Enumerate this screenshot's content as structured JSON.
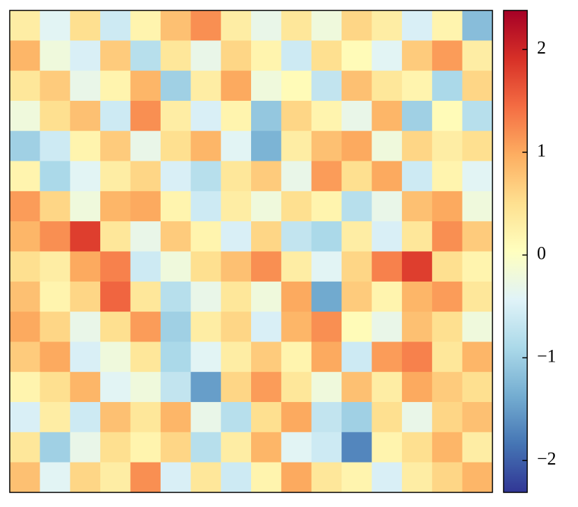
{
  "chart_data": {
    "type": "heatmap",
    "colormap": "RdYlBu_r",
    "zlim": [
      -2.31,
      2.38
    ],
    "zticks": [
      {
        "value": -2,
        "label": "−2"
      },
      {
        "value": -1,
        "label": "−1"
      },
      0,
      1,
      2
    ],
    "values": [
      [
        0.3,
        -0.4,
        0.5,
        -0.6,
        0.2,
        0.8,
        1.2,
        0.3,
        -0.3,
        0.4,
        -0.2,
        0.6,
        0.3,
        -0.5,
        0.2,
        -1.2
      ],
      [
        0.9,
        -0.2,
        -0.5,
        0.7,
        -0.8,
        0.4,
        -0.3,
        0.6,
        0.2,
        -0.6,
        0.5,
        0.1,
        -0.4,
        0.7,
        1.1,
        0.3
      ],
      [
        0.4,
        0.7,
        -0.3,
        0.2,
        0.9,
        -1.0,
        0.3,
        1.0,
        -0.2,
        0.1,
        -0.7,
        0.8,
        0.4,
        0.2,
        -0.9,
        0.6
      ],
      [
        -0.2,
        0.5,
        0.8,
        -0.6,
        1.2,
        0.3,
        -0.5,
        0.2,
        -1.1,
        0.6,
        0.2,
        -0.3,
        0.9,
        -1.0,
        0.1,
        -0.8
      ],
      [
        -1.0,
        -0.6,
        0.2,
        0.7,
        -0.3,
        0.5,
        0.9,
        -0.4,
        -1.3,
        0.3,
        0.8,
        1.0,
        -0.2,
        0.6,
        0.3,
        0.5
      ],
      [
        0.2,
        -0.9,
        -0.4,
        0.3,
        0.6,
        -0.5,
        -0.8,
        0.4,
        0.7,
        -0.3,
        1.1,
        0.5,
        1.0,
        -0.6,
        0.2,
        -0.4
      ],
      [
        1.1,
        0.6,
        -0.2,
        0.9,
        1.0,
        0.2,
        -0.6,
        0.3,
        -0.2,
        0.5,
        0.2,
        -0.8,
        -0.3,
        0.8,
        1.0,
        -0.2
      ],
      [
        0.9,
        1.2,
        1.8,
        0.4,
        -0.3,
        0.7,
        0.2,
        -0.5,
        0.6,
        -0.7,
        -0.9,
        0.3,
        -0.5,
        0.4,
        1.2,
        0.7
      ],
      [
        0.5,
        0.3,
        1.0,
        1.3,
        -0.6,
        -0.2,
        0.5,
        0.8,
        1.2,
        0.3,
        -0.4,
        0.6,
        1.3,
        1.8,
        0.5,
        0.2
      ],
      [
        0.8,
        0.2,
        0.6,
        1.5,
        0.4,
        -0.8,
        -0.3,
        0.4,
        -0.2,
        1.0,
        -1.4,
        0.7,
        0.2,
        0.9,
        1.1,
        0.4
      ],
      [
        1.0,
        0.6,
        -0.3,
        0.5,
        1.1,
        -1.0,
        0.3,
        0.6,
        -0.5,
        0.9,
        1.2,
        0.1,
        -0.3,
        0.8,
        0.5,
        -0.2
      ],
      [
        0.7,
        1.0,
        -0.5,
        -0.2,
        0.4,
        -0.9,
        -0.4,
        0.3,
        0.7,
        0.2,
        1.0,
        -0.6,
        1.1,
        1.3,
        0.4,
        0.9
      ],
      [
        0.2,
        0.5,
        0.9,
        -0.4,
        -0.2,
        -0.7,
        -1.5,
        0.6,
        1.1,
        0.4,
        -0.2,
        0.8,
        0.3,
        1.0,
        0.7,
        0.5
      ],
      [
        -0.5,
        0.3,
        -0.6,
        0.8,
        0.4,
        0.9,
        -0.3,
        -0.8,
        0.5,
        1.0,
        -0.7,
        -1.0,
        0.5,
        -0.3,
        0.6,
        0.8
      ],
      [
        0.4,
        -1.0,
        -0.3,
        0.5,
        0.2,
        0.6,
        -0.8,
        0.3,
        0.9,
        -0.4,
        -0.6,
        -1.7,
        0.2,
        0.5,
        0.9,
        0.3
      ],
      [
        0.8,
        -0.4,
        0.6,
        0.3,
        1.2,
        -0.5,
        0.4,
        -0.6,
        0.2,
        1.0,
        0.4,
        0.2,
        -0.5,
        0.3,
        0.6,
        0.9
      ]
    ]
  }
}
